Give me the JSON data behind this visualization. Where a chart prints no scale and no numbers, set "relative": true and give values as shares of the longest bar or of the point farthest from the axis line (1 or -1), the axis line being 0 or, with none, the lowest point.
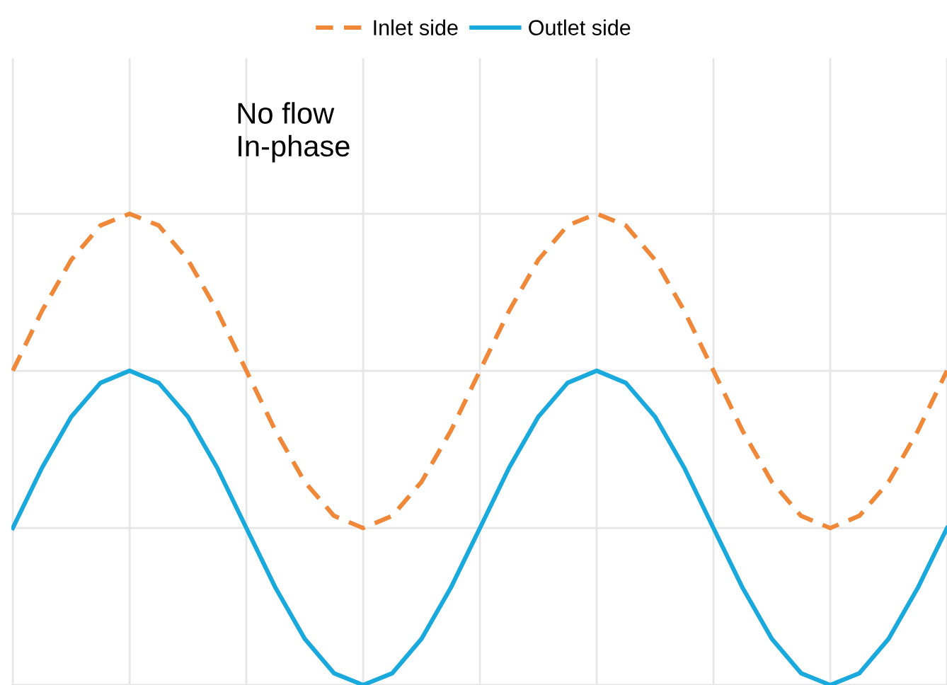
{
  "chart_data": {
    "type": "line",
    "relative": true,
    "grid": true,
    "legend": "top",
    "annotations": [
      "No flow\nIn-phase"
    ],
    "categories": [
      null,
      null,
      null,
      null,
      null,
      null,
      null,
      null,
      null,
      null,
      null,
      null,
      null,
      null,
      null,
      null,
      null,
      null,
      null,
      null,
      null,
      null,
      null,
      null,
      null,
      null,
      null,
      null,
      null,
      null,
      null,
      null,
      null
    ],
    "series": [
      {
        "name": "Inlet side",
        "color": "#f0883a",
        "line_style": "dashed",
        "values": [
          0.667,
          0.794,
          0.902,
          0.975,
          1.0,
          0.975,
          0.902,
          0.794,
          0.667,
          0.539,
          0.431,
          0.359,
          0.333,
          0.359,
          0.431,
          0.539,
          0.667,
          0.794,
          0.902,
          0.975,
          1.0,
          0.975,
          0.902,
          0.794,
          0.667,
          0.539,
          0.431,
          0.359,
          0.333,
          0.359,
          0.431,
          0.539,
          0.667
        ]
      },
      {
        "name": "Outlet side",
        "color": "#1aa9dc",
        "line_style": "solid",
        "values": [
          0.333,
          0.461,
          0.569,
          0.641,
          0.667,
          0.641,
          0.569,
          0.461,
          0.333,
          0.206,
          0.098,
          0.025,
          0.0,
          0.025,
          0.098,
          0.206,
          0.333,
          0.461,
          0.569,
          0.641,
          0.667,
          0.641,
          0.569,
          0.461,
          0.333,
          0.206,
          0.098,
          0.025,
          0.0,
          0.025,
          0.098,
          0.206,
          0.333
        ]
      }
    ]
  }
}
